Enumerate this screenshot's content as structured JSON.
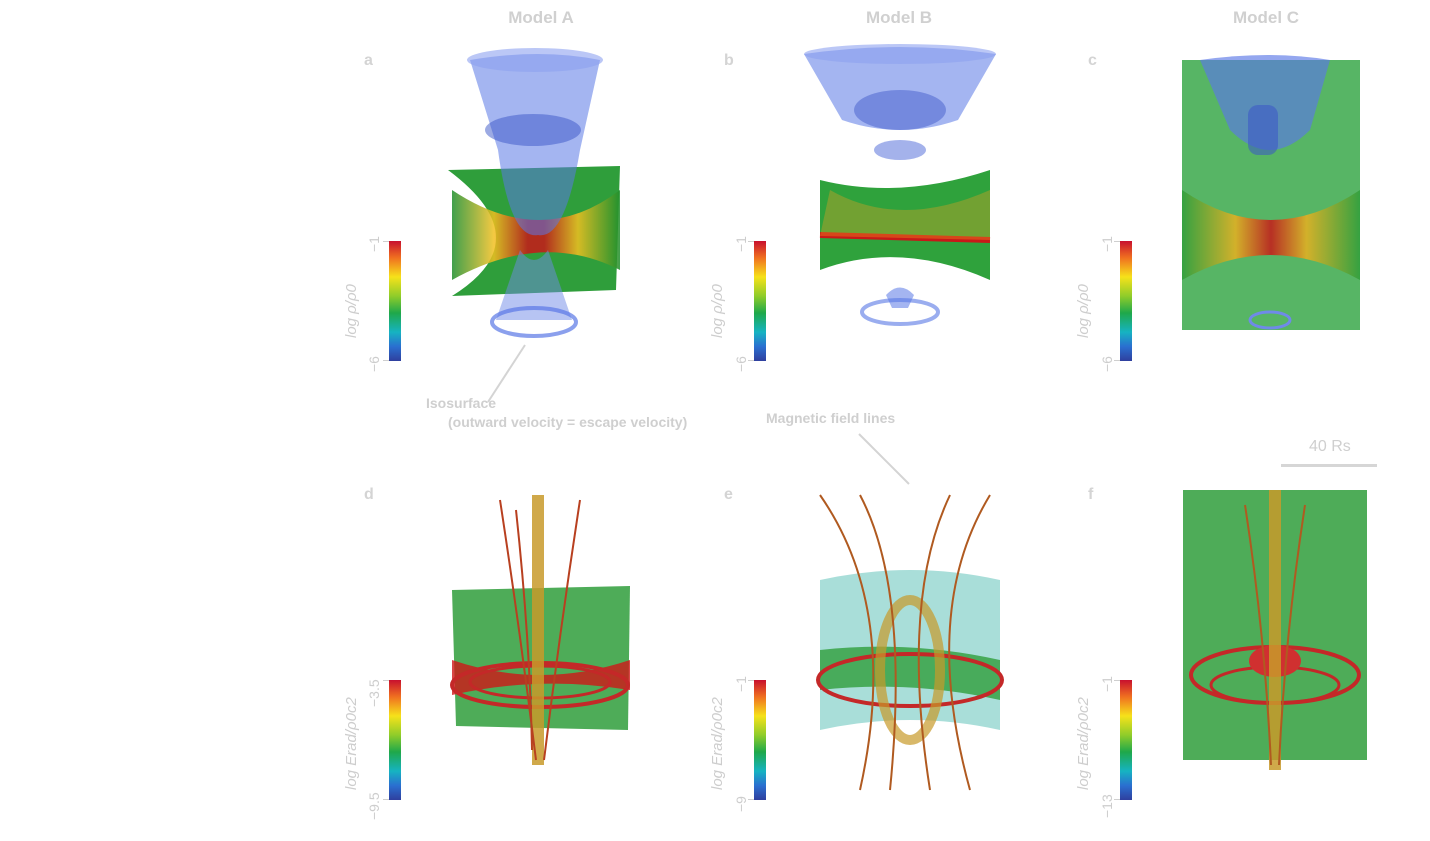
{
  "models": [
    {
      "title": "Model A"
    },
    {
      "title": "Model B"
    },
    {
      "title": "Model C"
    }
  ],
  "panels": [
    {
      "letter": "a",
      "cbar_top": "−1",
      "cbar_bottom": "−6",
      "cbar_label": "log ρ/ρ0"
    },
    {
      "letter": "b",
      "cbar_top": "−1",
      "cbar_bottom": "−6",
      "cbar_label": "log ρ/ρ0"
    },
    {
      "letter": "c",
      "cbar_top": "−1",
      "cbar_bottom": "−6",
      "cbar_label": "log ρ/ρ0"
    },
    {
      "letter": "d",
      "cbar_top": "−3.5",
      "cbar_bottom": "−9.5",
      "cbar_label": "log Erad/ρ0c2"
    },
    {
      "letter": "e",
      "cbar_top": "−1",
      "cbar_bottom": "−9",
      "cbar_label": "log Erad/ρ0c2"
    },
    {
      "letter": "f",
      "cbar_top": "−1",
      "cbar_bottom": "−13",
      "cbar_label": "log Erad/ρ0c2"
    }
  ],
  "annotations": {
    "isosurface_title": "Isosurface",
    "isosurface_detail": "(outward velocity = escape velocity)",
    "field_lines": "Magnetic field lines",
    "scale_bar": "40 Rs"
  },
  "colors": {
    "background": "#ffffff",
    "label_gray": "#cdcdcd",
    "isosurface_blue": "#5a78e6",
    "disk_green": "#1f9a3c",
    "disk_red": "#d01818",
    "field_line_red": "#c42828",
    "field_line_gold": "#c89a2a"
  }
}
